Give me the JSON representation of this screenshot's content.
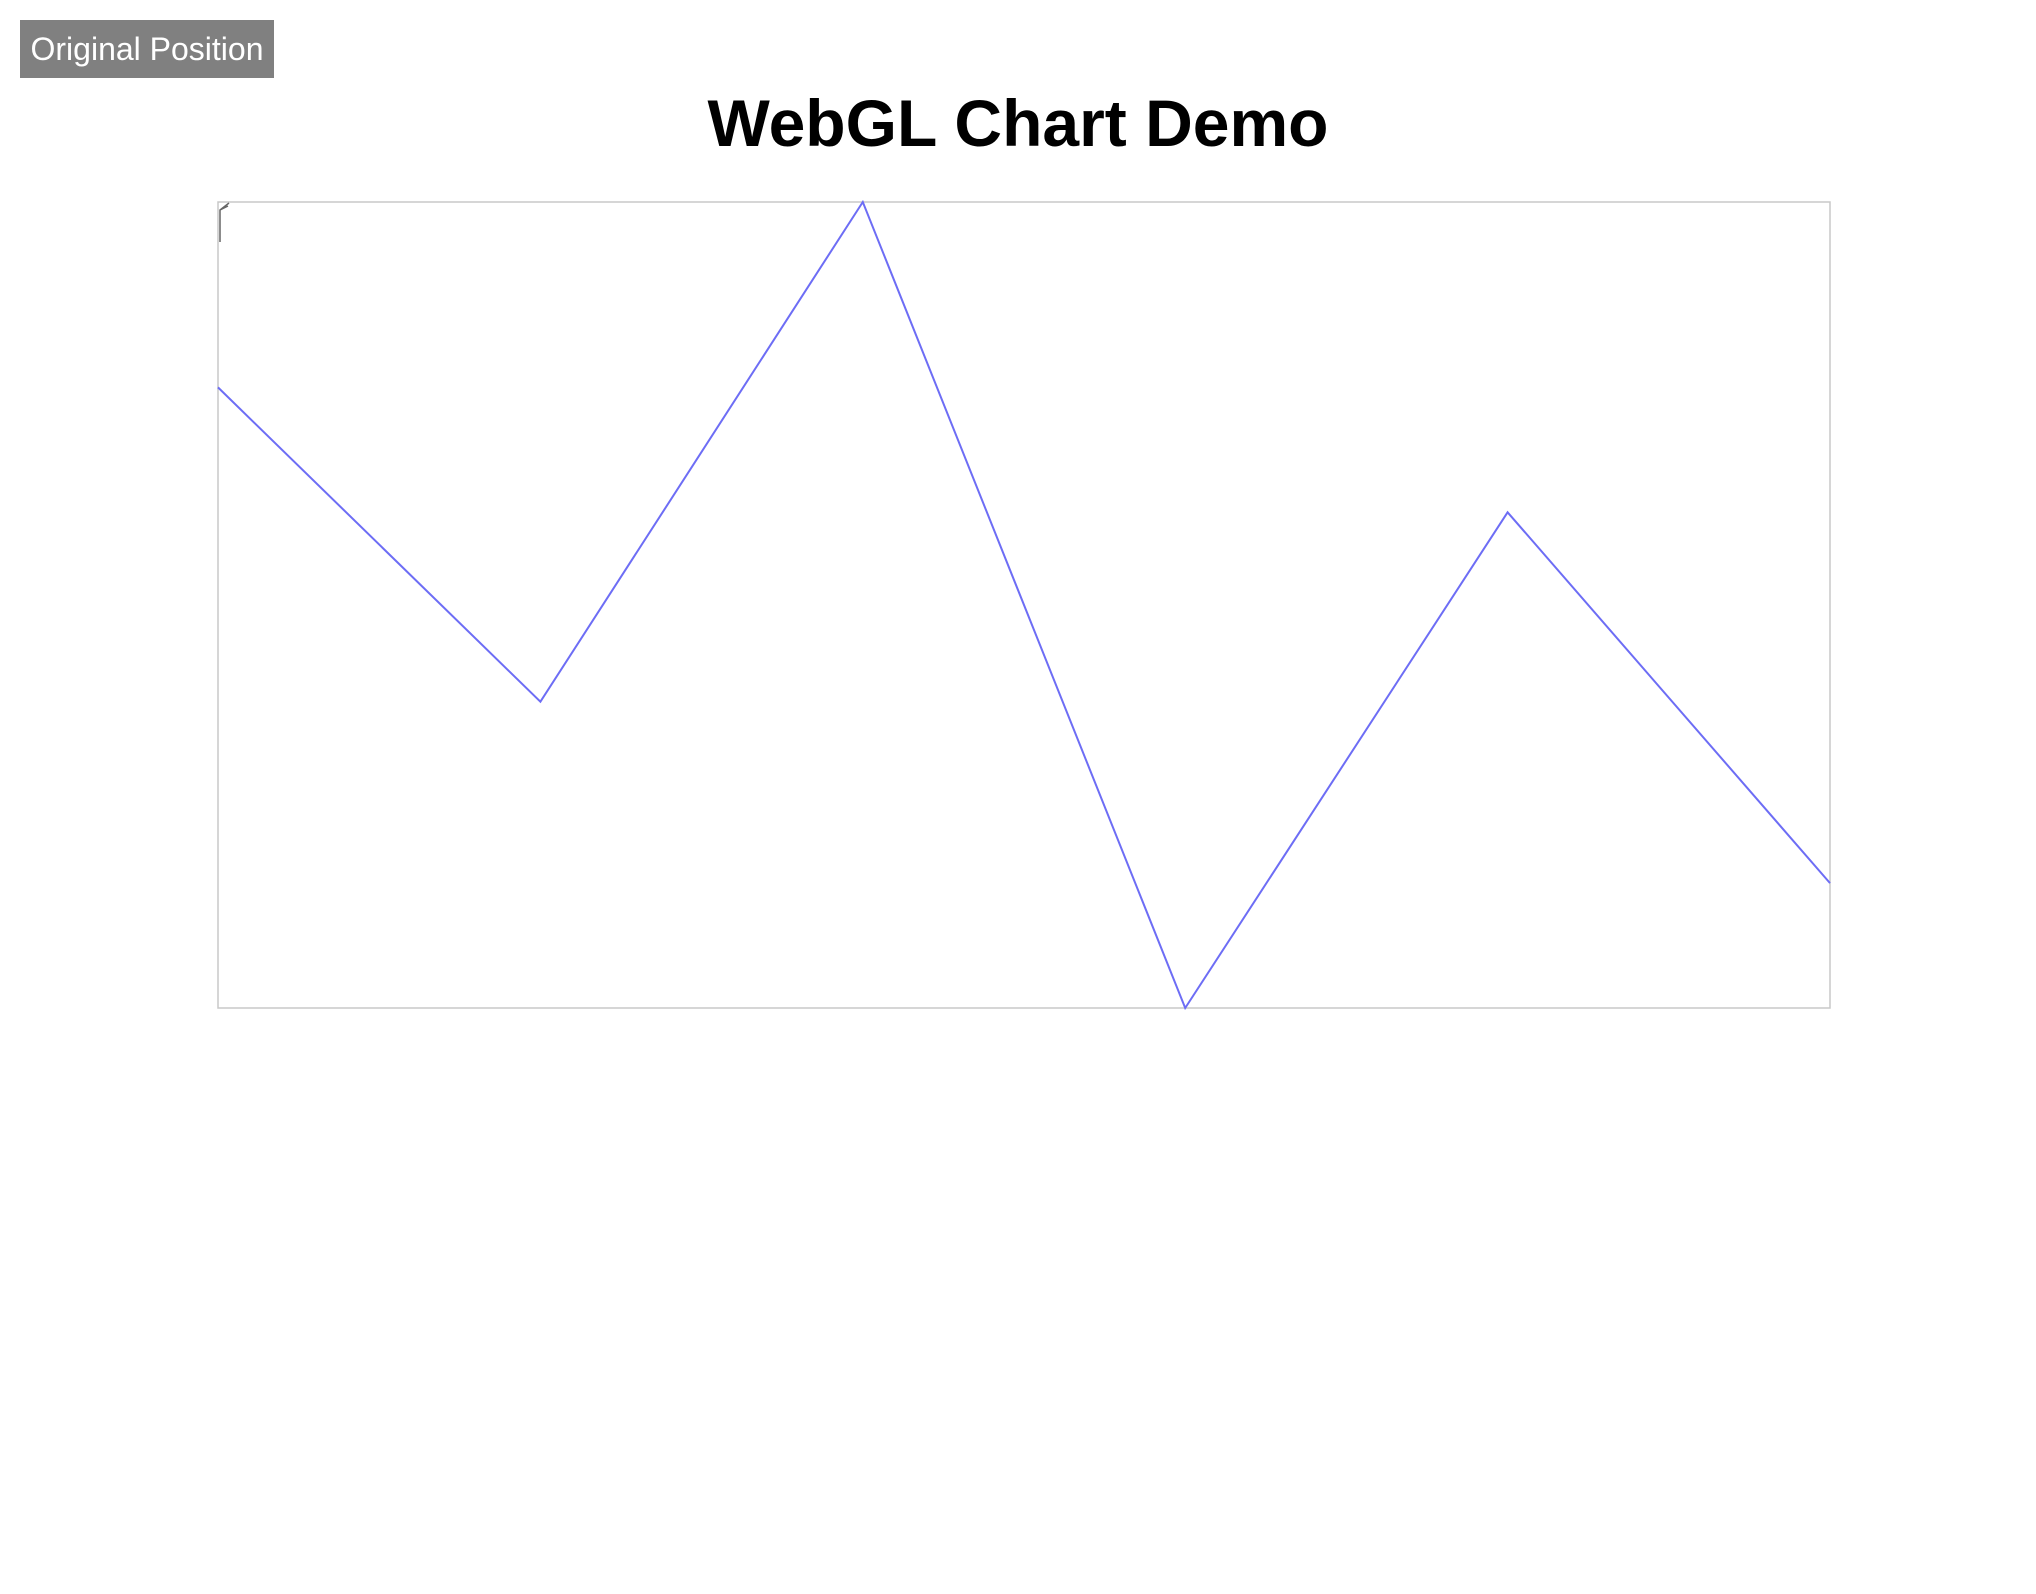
{
  "controls": {
    "reset_label": "Original Position"
  },
  "page": {
    "title": "WebGL Chart Demo"
  },
  "colors": {
    "line": "#6d6df5",
    "border": "#c8c8c8",
    "button_bg": "#808080"
  },
  "chart_data": {
    "type": "line",
    "x": [
      0,
      1,
      2,
      3,
      4,
      5
    ],
    "series": [
      {
        "values": [
          0.77,
          0.38,
          1.0,
          0.0,
          0.615,
          0.155
        ]
      }
    ],
    "xlim": [
      0,
      5
    ],
    "ylim": [
      0,
      1
    ],
    "title": "",
    "xlabel": "",
    "ylabel": "",
    "grid": false,
    "legend": "none"
  }
}
